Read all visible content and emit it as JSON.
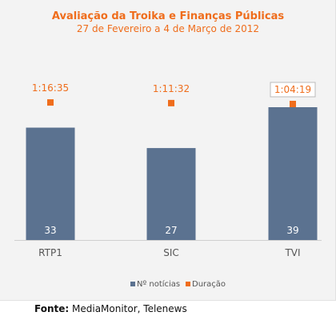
{
  "chart_data": {
    "type": "bar",
    "title": "Avaliação da Troika e Finanças Públicas",
    "subtitle": "27 de Fevereiro a 4 de Março de 2012",
    "categories": [
      "RTP1",
      "SIC",
      "TVI"
    ],
    "series": [
      {
        "name": "Nº notícias",
        "type": "bar",
        "values": [
          33,
          27,
          39
        ],
        "color": "#5b7290"
      },
      {
        "name": "Duração",
        "type": "scatter",
        "values": [
          "1:16:35",
          "1:11:32",
          "1:04:19"
        ],
        "color": "#ef6d1c"
      }
    ],
    "legend": "bottom-center",
    "grid": false
  },
  "source": {
    "label": "Fonte:",
    "text": "MediaMonitor, Telenews"
  }
}
